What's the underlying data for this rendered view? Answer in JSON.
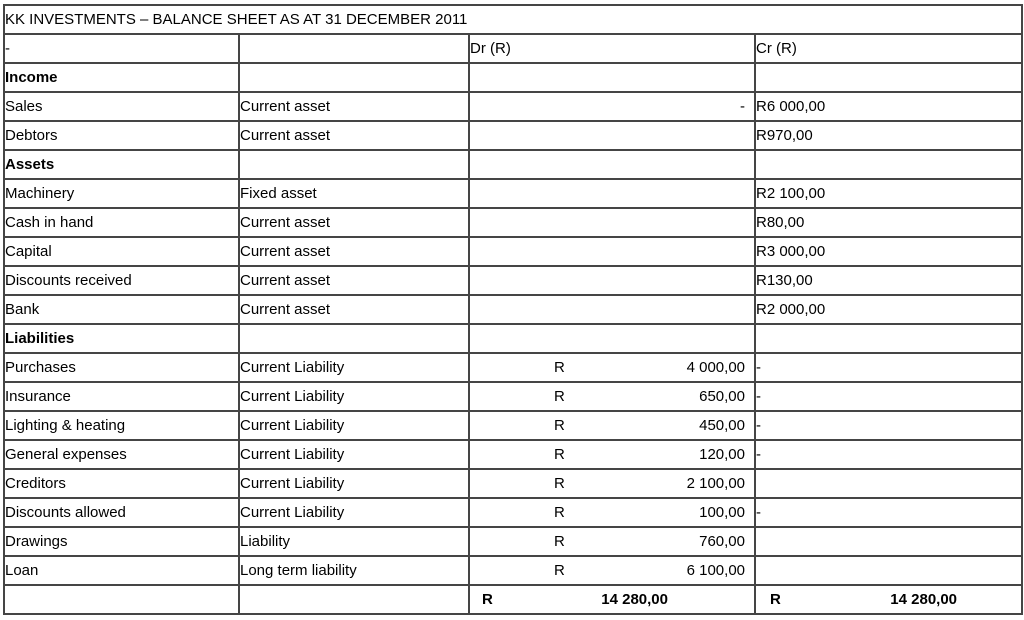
{
  "title": "KK INVESTMENTS – BALANCE SHEET AS AT 31 DECEMBER 2011",
  "header": {
    "item_label": "-",
    "classification_label": "",
    "dr_label": "Dr (R)",
    "cr_label": "Cr (R)"
  },
  "rows": [
    {
      "type": "section",
      "name": "Income",
      "classification": "",
      "dr_currency": "",
      "dr_amount": "",
      "cr_amount": ""
    },
    {
      "type": "item",
      "name": "Sales",
      "classification": "Current asset",
      "dr_currency": "",
      "dr_amount": "-",
      "cr_amount": "R6 000,00"
    },
    {
      "type": "item",
      "name": "Debtors",
      "classification": "Current asset",
      "dr_currency": "",
      "dr_amount": "",
      "cr_amount": "R970,00"
    },
    {
      "type": "section",
      "name": "Assets",
      "classification": "",
      "dr_currency": "",
      "dr_amount": "",
      "cr_amount": ""
    },
    {
      "type": "item",
      "name": "Machinery",
      "classification": "Fixed asset",
      "dr_currency": "",
      "dr_amount": "",
      "cr_amount": "R2 100,00"
    },
    {
      "type": "item",
      "name": "Cash in hand",
      "classification": "Current asset",
      "dr_currency": "",
      "dr_amount": "",
      "cr_amount": "R80,00"
    },
    {
      "type": "item",
      "name": "Capital",
      "classification": "Current asset",
      "dr_currency": "",
      "dr_amount": "",
      "cr_amount": "R3 000,00"
    },
    {
      "type": "item",
      "name": "Discounts received",
      "classification": "Current asset",
      "dr_currency": "",
      "dr_amount": "",
      "cr_amount": "R130,00"
    },
    {
      "type": "item",
      "name": "Bank",
      "classification": "Current asset",
      "dr_currency": "",
      "dr_amount": "",
      "cr_amount": "R2 000,00"
    },
    {
      "type": "section",
      "name": "Liabilities",
      "classification": "",
      "dr_currency": "",
      "dr_amount": "",
      "cr_amount": ""
    },
    {
      "type": "item",
      "name": "Purchases",
      "classification": "Current Liability",
      "dr_currency": "R",
      "dr_amount": "4 000,00",
      "cr_amount": "-"
    },
    {
      "type": "item",
      "name": "Insurance",
      "classification": "Current Liability",
      "dr_currency": "R",
      "dr_amount": "650,00",
      "cr_amount": "-"
    },
    {
      "type": "item",
      "name": "Lighting & heating",
      "classification": "Current Liability",
      "dr_currency": "R",
      "dr_amount": "450,00",
      "cr_amount": "-"
    },
    {
      "type": "item",
      "name": "General expenses",
      "classification": "Current Liability",
      "dr_currency": "R",
      "dr_amount": "120,00",
      "cr_amount": "-"
    },
    {
      "type": "item",
      "name": "Creditors",
      "classification": "Current Liability",
      "dr_currency": "R",
      "dr_amount": "2 100,00",
      "cr_amount": ""
    },
    {
      "type": "item",
      "name": "Discounts allowed",
      "classification": "Current Liability",
      "dr_currency": "R",
      "dr_amount": "100,00",
      "cr_amount": "-"
    },
    {
      "type": "item",
      "name": "Drawings",
      "classification": "Liability",
      "dr_currency": "R",
      "dr_amount": "760,00",
      "cr_amount": ""
    },
    {
      "type": "item",
      "name": "Loan",
      "classification": "Long term liability",
      "dr_currency": "R",
      "dr_amount": "6 100,00",
      "cr_amount": ""
    }
  ],
  "total_row": {
    "dr_currency": "R",
    "dr_amount": "14 280,00",
    "cr_currency": "R",
    "cr_amount": "14 280,00"
  },
  "colors": {
    "border": "#454545",
    "text": "#000000",
    "background": "#ffffff"
  }
}
